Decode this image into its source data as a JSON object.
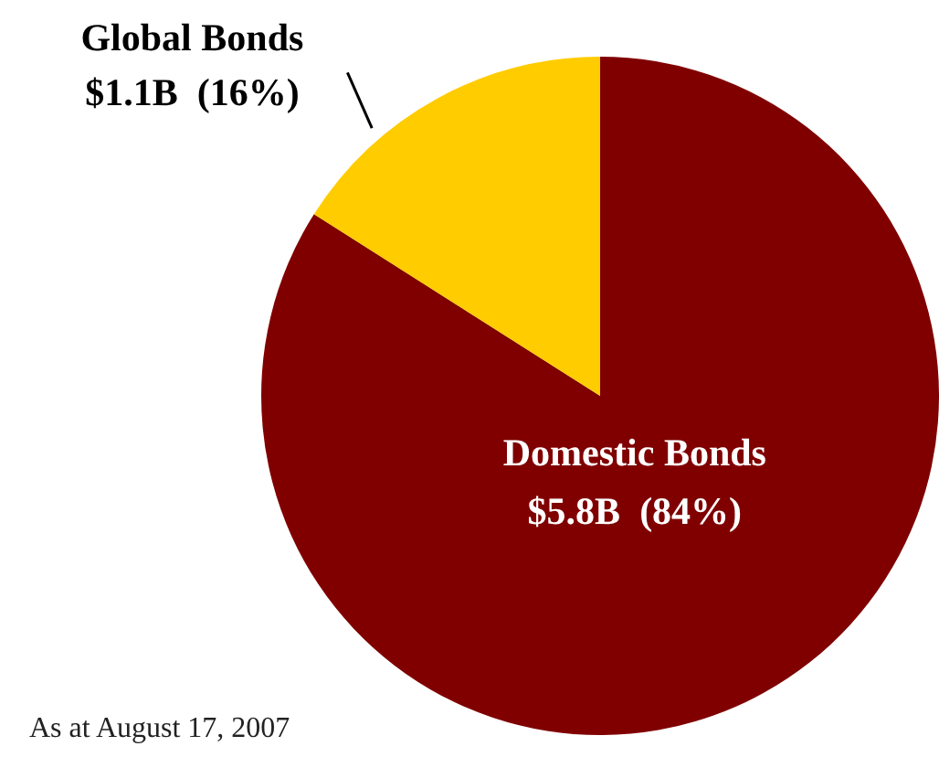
{
  "chart_data": {
    "type": "pie",
    "categories": [
      "Domestic Bonds",
      "Global Bonds"
    ],
    "values": [
      84,
      16
    ],
    "colors": [
      "#800000",
      "#ffcc00"
    ],
    "value_labels": [
      "$5.8B  (84%)",
      "$1.1B  (16%)"
    ],
    "annotations": [
      "As at August 17, 2007"
    ],
    "legend": false
  }
}
